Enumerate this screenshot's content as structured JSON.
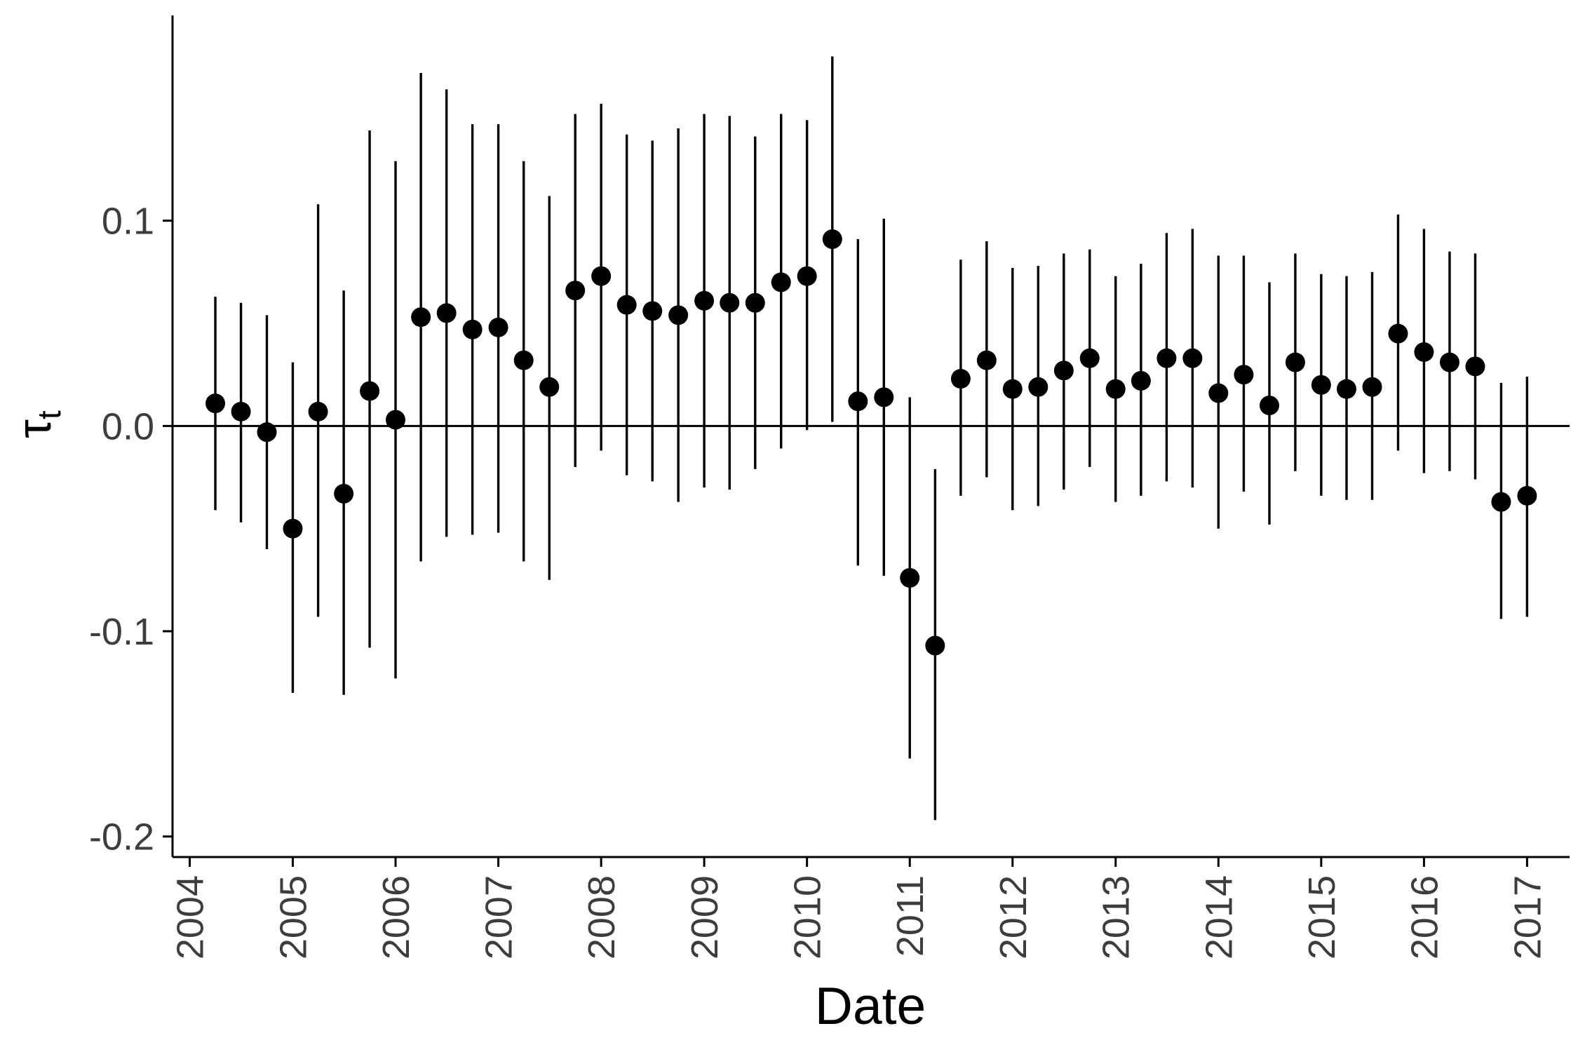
{
  "chart_data": {
    "type": "scatter",
    "subtype": "point-with-error-bars",
    "xlabel": "Date",
    "ylabel": "τ",
    "ylabel_subscript": "t",
    "xlim": [
      "2003-11-01",
      "2017-06-01"
    ],
    "ylim": [
      -0.21,
      0.2
    ],
    "x_ticks": [
      "2004",
      "2005",
      "2006",
      "2007",
      "2008",
      "2009",
      "2010",
      "2011",
      "2012",
      "2013",
      "2014",
      "2015",
      "2016",
      "2017"
    ],
    "x_tick_dates": [
      "2004-01-01",
      "2005-01-01",
      "2006-01-01",
      "2007-01-01",
      "2008-01-01",
      "2009-01-01",
      "2010-01-01",
      "2011-01-01",
      "2012-01-01",
      "2013-01-01",
      "2014-01-01",
      "2015-01-01",
      "2016-01-01",
      "2017-01-01"
    ],
    "y_ticks": [
      {
        "value": 0.1,
        "label": "0.1"
      },
      {
        "value": 0.0,
        "label": "0.0"
      },
      {
        "value": -0.1,
        "label": "-0.1"
      },
      {
        "value": -0.2,
        "label": "-0.2"
      }
    ],
    "reference_line": 0,
    "grid": false,
    "legend": "none",
    "point_color": "#000000",
    "points": [
      {
        "x": "2004-04-01",
        "y": 0.011,
        "lo": -0.041,
        "hi": 0.063
      },
      {
        "x": "2004-07-01",
        "y": 0.007,
        "lo": -0.047,
        "hi": 0.06
      },
      {
        "x": "2004-10-01",
        "y": -0.003,
        "lo": -0.06,
        "hi": 0.054
      },
      {
        "x": "2005-01-01",
        "y": -0.05,
        "lo": -0.13,
        "hi": 0.031
      },
      {
        "x": "2005-04-01",
        "y": 0.007,
        "lo": -0.093,
        "hi": 0.108
      },
      {
        "x": "2005-07-01",
        "y": -0.033,
        "lo": -0.131,
        "hi": 0.066
      },
      {
        "x": "2005-10-01",
        "y": 0.017,
        "lo": -0.108,
        "hi": 0.144
      },
      {
        "x": "2006-01-01",
        "y": 0.003,
        "lo": -0.123,
        "hi": 0.129
      },
      {
        "x": "2006-04-01",
        "y": 0.053,
        "lo": -0.066,
        "hi": 0.172
      },
      {
        "x": "2006-07-01",
        "y": 0.055,
        "lo": -0.054,
        "hi": 0.164
      },
      {
        "x": "2006-10-01",
        "y": 0.047,
        "lo": -0.053,
        "hi": 0.147
      },
      {
        "x": "2007-01-01",
        "y": 0.048,
        "lo": -0.052,
        "hi": 0.147
      },
      {
        "x": "2007-04-01",
        "y": 0.032,
        "lo": -0.066,
        "hi": 0.129
      },
      {
        "x": "2007-07-01",
        "y": 0.019,
        "lo": -0.075,
        "hi": 0.112
      },
      {
        "x": "2007-10-01",
        "y": 0.066,
        "lo": -0.02,
        "hi": 0.152
      },
      {
        "x": "2008-01-01",
        "y": 0.073,
        "lo": -0.012,
        "hi": 0.157
      },
      {
        "x": "2008-04-01",
        "y": 0.059,
        "lo": -0.024,
        "hi": 0.142
      },
      {
        "x": "2008-07-01",
        "y": 0.056,
        "lo": -0.027,
        "hi": 0.139
      },
      {
        "x": "2008-10-01",
        "y": 0.054,
        "lo": -0.037,
        "hi": 0.145
      },
      {
        "x": "2009-01-01",
        "y": 0.061,
        "lo": -0.03,
        "hi": 0.152
      },
      {
        "x": "2009-04-01",
        "y": 0.06,
        "lo": -0.031,
        "hi": 0.151
      },
      {
        "x": "2009-07-01",
        "y": 0.06,
        "lo": -0.021,
        "hi": 0.141
      },
      {
        "x": "2009-10-01",
        "y": 0.07,
        "lo": -0.011,
        "hi": 0.152
      },
      {
        "x": "2010-01-01",
        "y": 0.073,
        "lo": -0.002,
        "hi": 0.149
      },
      {
        "x": "2010-04-01",
        "y": 0.091,
        "lo": 0.002,
        "hi": 0.18
      },
      {
        "x": "2010-07-01",
        "y": 0.012,
        "lo": -0.068,
        "hi": 0.091
      },
      {
        "x": "2010-10-01",
        "y": 0.014,
        "lo": -0.073,
        "hi": 0.101
      },
      {
        "x": "2011-01-01",
        "y": -0.074,
        "lo": -0.162,
        "hi": 0.014
      },
      {
        "x": "2011-04-01",
        "y": -0.107,
        "lo": -0.192,
        "hi": -0.021
      },
      {
        "x": "2011-07-01",
        "y": 0.023,
        "lo": -0.034,
        "hi": 0.081
      },
      {
        "x": "2011-10-01",
        "y": 0.032,
        "lo": -0.025,
        "hi": 0.09
      },
      {
        "x": "2012-01-01",
        "y": 0.018,
        "lo": -0.041,
        "hi": 0.077
      },
      {
        "x": "2012-04-01",
        "y": 0.019,
        "lo": -0.039,
        "hi": 0.078
      },
      {
        "x": "2012-07-01",
        "y": 0.027,
        "lo": -0.031,
        "hi": 0.084
      },
      {
        "x": "2012-10-01",
        "y": 0.033,
        "lo": -0.02,
        "hi": 0.086
      },
      {
        "x": "2013-01-01",
        "y": 0.018,
        "lo": -0.037,
        "hi": 0.073
      },
      {
        "x": "2013-04-01",
        "y": 0.022,
        "lo": -0.034,
        "hi": 0.079
      },
      {
        "x": "2013-07-01",
        "y": 0.033,
        "lo": -0.027,
        "hi": 0.094
      },
      {
        "x": "2013-10-01",
        "y": 0.033,
        "lo": -0.03,
        "hi": 0.096
      },
      {
        "x": "2014-01-01",
        "y": 0.016,
        "lo": -0.05,
        "hi": 0.083
      },
      {
        "x": "2014-04-01",
        "y": 0.025,
        "lo": -0.032,
        "hi": 0.083
      },
      {
        "x": "2014-07-01",
        "y": 0.01,
        "lo": -0.048,
        "hi": 0.07
      },
      {
        "x": "2014-10-01",
        "y": 0.031,
        "lo": -0.022,
        "hi": 0.084
      },
      {
        "x": "2015-01-01",
        "y": 0.02,
        "lo": -0.034,
        "hi": 0.074
      },
      {
        "x": "2015-04-01",
        "y": 0.018,
        "lo": -0.036,
        "hi": 0.073
      },
      {
        "x": "2015-07-01",
        "y": 0.019,
        "lo": -0.036,
        "hi": 0.075
      },
      {
        "x": "2015-10-01",
        "y": 0.045,
        "lo": -0.012,
        "hi": 0.103
      },
      {
        "x": "2016-01-01",
        "y": 0.036,
        "lo": -0.023,
        "hi": 0.096
      },
      {
        "x": "2016-04-01",
        "y": 0.031,
        "lo": -0.022,
        "hi": 0.085
      },
      {
        "x": "2016-07-01",
        "y": 0.029,
        "lo": -0.026,
        "hi": 0.084
      },
      {
        "x": "2016-10-01",
        "y": -0.037,
        "lo": -0.094,
        "hi": 0.021
      },
      {
        "x": "2017-01-01",
        "y": -0.034,
        "lo": -0.093,
        "hi": 0.024
      }
    ]
  }
}
